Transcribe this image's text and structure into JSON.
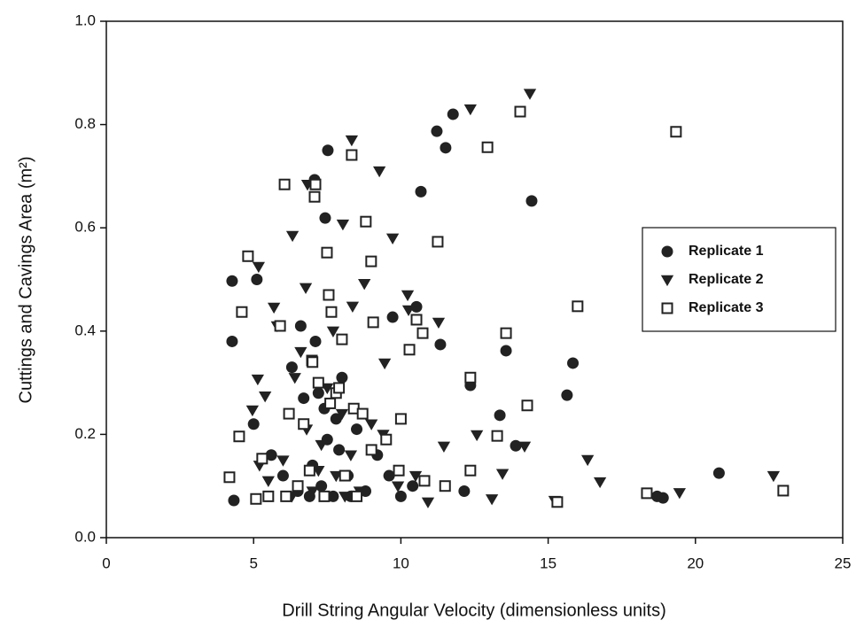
{
  "chart_data": {
    "type": "scatter",
    "xlabel": "Drill String Angular Velocity (dimensionless units)",
    "ylabel": "Cuttings and Cavings Area (m²)",
    "xlim": [
      0,
      25
    ],
    "xticks": [
      0,
      5,
      10,
      15,
      20,
      25
    ],
    "ylim": [
      0,
      1
    ],
    "yticks": [
      {
        "value": 0,
        "label": "0.0"
      },
      0.2,
      0.4,
      0.6,
      0.8,
      {
        "value": 1,
        "label": "1.0"
      }
    ],
    "legend": "right",
    "series": [
      {
        "name": "Replicate 1",
        "color": "#222222",
        "marker": "circle",
        "x": [
          7.52,
          7.07,
          11.22,
          11.77,
          11.52,
          10.68,
          14.44,
          4.27,
          5.11,
          4.27,
          7.43,
          9.72,
          10.53,
          11.34,
          13.57,
          15.84,
          15.64,
          13.36,
          12.36,
          13.9,
          20.8,
          18.7,
          18.9,
          12.15,
          4.33,
          5.0,
          5.6,
          6.0,
          6.3,
          6.5,
          6.7,
          6.9,
          7.0,
          7.2,
          7.3,
          7.5,
          7.7,
          7.8,
          8.0,
          8.2,
          8.5,
          8.8,
          9.2,
          9.6,
          10.0,
          10.4,
          6.6,
          7.1,
          7.4,
          7.9,
          8.3
        ],
        "values": [
          0.75,
          0.693,
          0.787,
          0.82,
          0.755,
          0.67,
          0.652,
          0.497,
          0.5,
          0.38,
          0.619,
          0.427,
          0.447,
          0.374,
          0.362,
          0.338,
          0.276,
          0.237,
          0.295,
          0.178,
          0.125,
          0.08,
          0.077,
          0.09,
          0.072,
          0.22,
          0.16,
          0.12,
          0.33,
          0.09,
          0.27,
          0.08,
          0.14,
          0.28,
          0.1,
          0.19,
          0.08,
          0.23,
          0.31,
          0.12,
          0.21,
          0.09,
          0.16,
          0.12,
          0.08,
          0.1,
          0.41,
          0.38,
          0.25,
          0.17,
          0.08
        ]
      },
      {
        "name": "Replicate 2",
        "color": "#222222",
        "marker": "triangle-down",
        "x": [
          14.38,
          12.36,
          8.33,
          9.27,
          6.83,
          5.17,
          6.32,
          8.03,
          9.72,
          8.76,
          6.77,
          5.69,
          8.36,
          11.28,
          10.26,
          9.45,
          5.14,
          4.96,
          11.46,
          12.58,
          13.45,
          13.09,
          14.2,
          16.34,
          16.76,
          15.22,
          19.46,
          22.65,
          10.92,
          5.39,
          10.23,
          5.2,
          5.5,
          5.8,
          6.0,
          6.3,
          6.6,
          6.8,
          7.0,
          7.3,
          7.5,
          7.8,
          8.0,
          8.3,
          8.6,
          9.0,
          9.4,
          9.9,
          10.5,
          6.4,
          7.2,
          7.7,
          8.1
        ],
        "values": [
          0.86,
          0.83,
          0.77,
          0.71,
          0.684,
          0.525,
          0.585,
          0.607,
          0.58,
          0.492,
          0.484,
          0.446,
          0.448,
          0.417,
          0.441,
          0.338,
          0.307,
          0.247,
          0.177,
          0.199,
          0.124,
          0.075,
          0.177,
          0.151,
          0.108,
          0.072,
          0.087,
          0.12,
          0.069,
          0.274,
          0.47,
          0.14,
          0.11,
          0.41,
          0.15,
          0.08,
          0.36,
          0.21,
          0.09,
          0.18,
          0.29,
          0.12,
          0.24,
          0.16,
          0.09,
          0.22,
          0.2,
          0.1,
          0.12,
          0.31,
          0.13,
          0.4,
          0.08
        ]
      },
      {
        "name": "Replicate 3",
        "color": "#222222",
        "marker": "square-open",
        "x": [
          14.05,
          12.94,
          19.34,
          8.33,
          6.05,
          7.1,
          7.07,
          8.81,
          11.25,
          4.81,
          7.49,
          8.99,
          7.55,
          4.6,
          7.64,
          9.06,
          10.53,
          10.74,
          13.57,
          16.0,
          8.0,
          10.29,
          12.36,
          14.29,
          13.27,
          4.51,
          18.35,
          22.98,
          15.31,
          12.36,
          9.93,
          4.18,
          6.98,
          5.08,
          5.29,
          5.5,
          5.9,
          6.2,
          6.5,
          6.7,
          6.9,
          7.2,
          7.4,
          7.6,
          7.8,
          8.1,
          8.4,
          8.7,
          9.0,
          9.5,
          10.0,
          10.8,
          11.5,
          6.1,
          7.0,
          7.9,
          8.5
        ],
        "values": [
          0.825,
          0.756,
          0.786,
          0.741,
          0.684,
          0.684,
          0.66,
          0.612,
          0.573,
          0.545,
          0.552,
          0.535,
          0.47,
          0.437,
          0.437,
          0.417,
          0.422,
          0.396,
          0.396,
          0.448,
          0.384,
          0.364,
          0.31,
          0.256,
          0.197,
          0.196,
          0.086,
          0.091,
          0.069,
          0.13,
          0.13,
          0.117,
          0.343,
          0.075,
          0.153,
          0.08,
          0.41,
          0.24,
          0.1,
          0.22,
          0.13,
          0.3,
          0.08,
          0.26,
          0.28,
          0.12,
          0.25,
          0.24,
          0.17,
          0.19,
          0.23,
          0.11,
          0.1,
          0.08,
          0.34,
          0.29,
          0.08
        ]
      }
    ]
  }
}
